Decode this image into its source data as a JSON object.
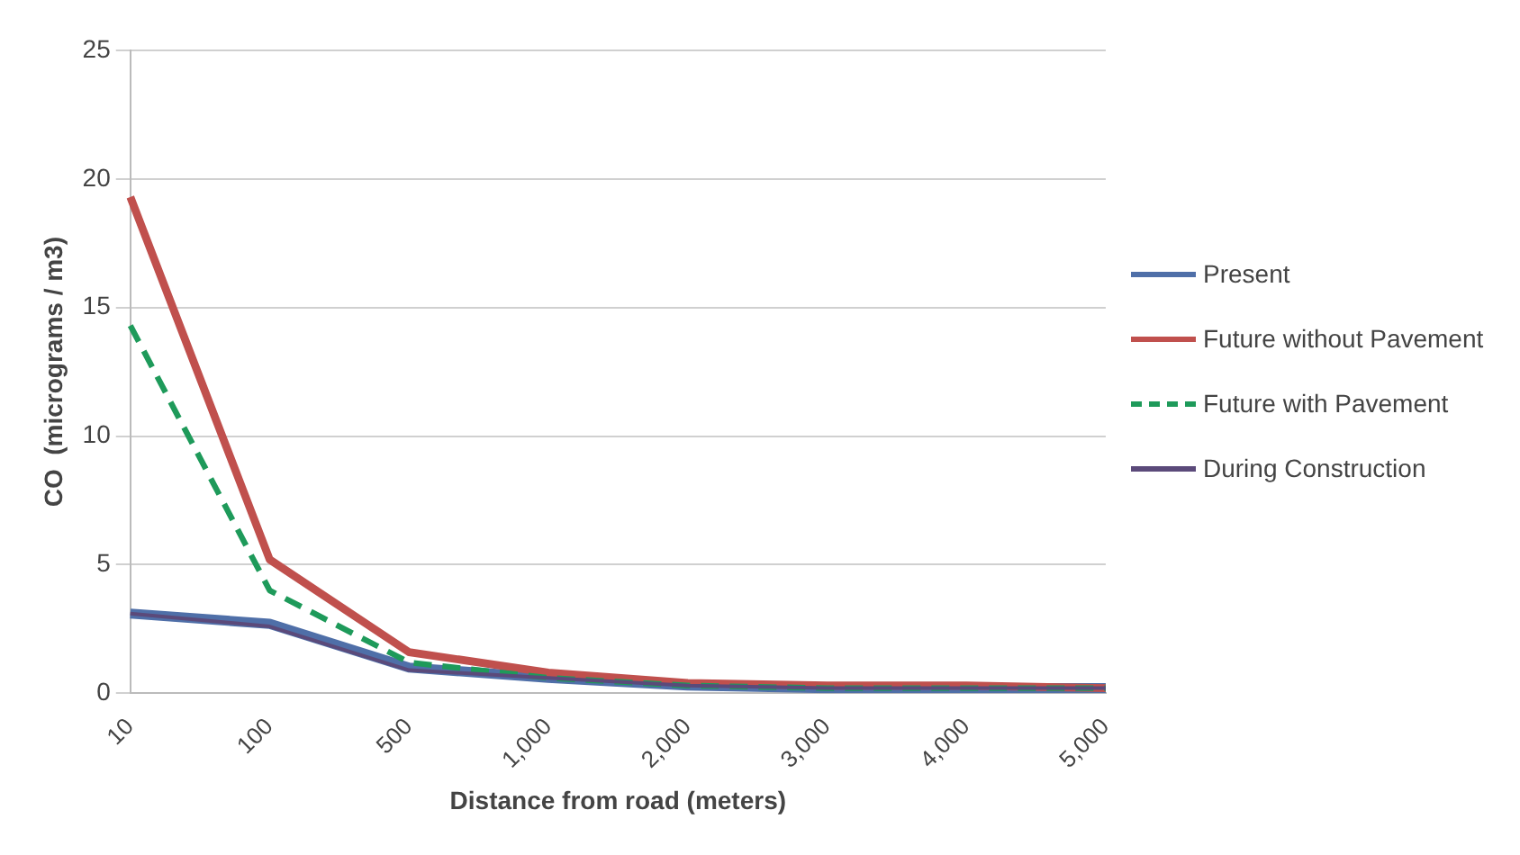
{
  "chart_data": {
    "type": "line",
    "xlabel": "Distance from road (meters)",
    "ylabel": "CO  (micrograms / m3)",
    "categories": [
      "10",
      "100",
      "500",
      "1,000",
      "2,000",
      "3,000",
      "4,000",
      "5,000"
    ],
    "series": [
      {
        "name": "Present",
        "color": "#4f6fa8",
        "values": [
          3.1,
          2.7,
          1.0,
          0.6,
          0.3,
          0.2,
          0.2,
          0.2
        ]
      },
      {
        "name": "Future without Pavement",
        "color": "#c0504d",
        "values": [
          19.3,
          5.2,
          1.6,
          0.8,
          0.4,
          0.3,
          0.3,
          0.2
        ]
      },
      {
        "name": "Future with Pavement",
        "color": "#1e9a5a",
        "line_style": "dashed",
        "values": [
          14.3,
          4.0,
          1.2,
          0.6,
          0.3,
          0.2,
          0.2,
          0.2
        ]
      },
      {
        "name": "During Construction",
        "color": "#5b4a7a",
        "values": [
          3.1,
          2.6,
          0.9,
          0.6,
          0.3,
          0.2,
          0.2,
          0.2
        ]
      }
    ],
    "ylim": [
      0,
      25
    ],
    "yticks": [
      0,
      5,
      10,
      15,
      20,
      25
    ],
    "grid": "y",
    "legend": "right",
    "marker": "none",
    "line_style": "solid"
  }
}
